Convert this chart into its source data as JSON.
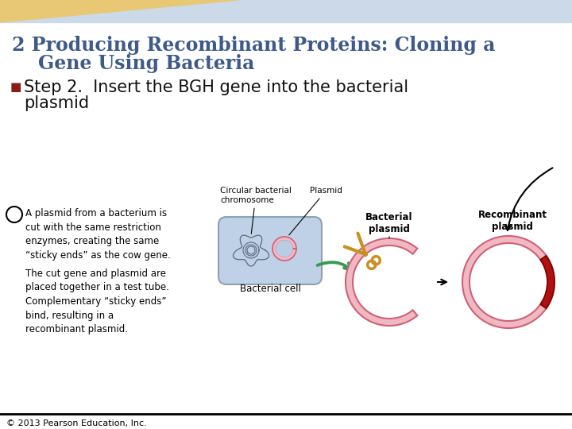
{
  "title_line1": "2 Producing Recombinant Proteins: Cloning a",
  "title_line2": "    Gene Using Bacteria",
  "title_color": "#3d5a8a",
  "title_fontsize": 17,
  "step_fontsize": 15,
  "step_color": "#111111",
  "bullet_color": "#8b1a1a",
  "bg_top_color": "#e8c875",
  "bg_top_right_color": "#ccd9e8",
  "bg_main": "#ffffff",
  "footer_text": "© 2013 Pearson Education, Inc.",
  "footer_fontsize": 8,
  "footer_color": "#000000",
  "body_para1": "A plasmid from a bacterium is\ncut with the same restriction\nenzymes, creating the same\n“sticky ends” as the cow gene.",
  "body_para2": "The cut gene and plasmid are\nplaced together in a test tube.\nComplementary “sticky ends”\nbind, resulting in a\nrecombinant plasmid.",
  "label_circular": "Circular bacterial\nchromosome",
  "label_plasmid": "Plasmid",
  "label_bacterial_cell": "Bacterial cell",
  "label_bacterial_plasmid": "Bacterial\nplasmid",
  "label_recombinant": "Recombinant\nplasmid",
  "body_fontsize": 8.5,
  "label_fontsize": 8.5,
  "plasmid_pink": "#f0b8c0",
  "plasmid_edge": "#d0607a",
  "plasmid_inner_bg": "#ffffff",
  "bgh_red": "#b01010",
  "cell_fill": "#b8cce4",
  "cell_edge": "#8899aa"
}
